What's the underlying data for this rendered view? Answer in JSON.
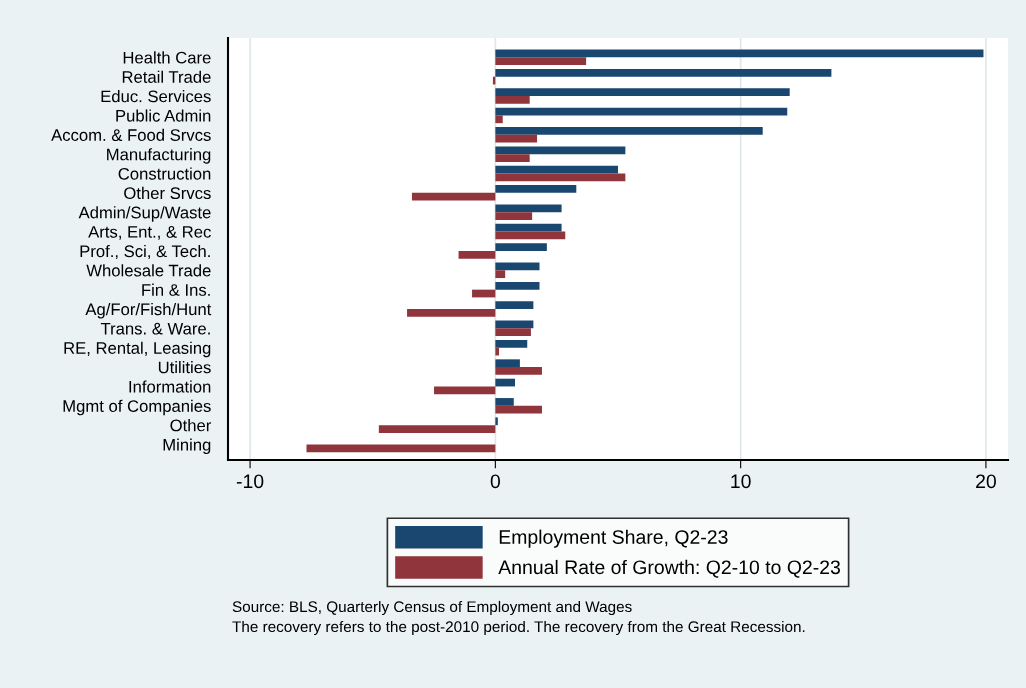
{
  "chart_data": {
    "type": "bar",
    "orientation": "horizontal",
    "categories": [
      "Health Care",
      "Retail Trade",
      "Educ. Services",
      "Public Admin",
      "Accom. & Food Srvcs",
      "Manufacturing",
      "Construction",
      "Other Srvcs",
      "Admin/Sup/Waste",
      "Arts, Ent., & Rec",
      "Prof., Sci, & Tech.",
      "Wholesale Trade",
      "Fin & Ins.",
      "Ag/For/Fish/Hunt",
      "Trans. & Ware.",
      "RE, Rental, Leasing",
      "Utilities",
      "Information",
      "Mgmt of Companies",
      "Other",
      "Mining"
    ],
    "series": [
      {
        "name": "Employment Share, Q2-23",
        "color": "#1a476f",
        "values": [
          19.9,
          13.7,
          12.0,
          11.9,
          10.9,
          5.3,
          5.0,
          3.3,
          2.7,
          2.7,
          2.1,
          1.8,
          1.8,
          1.55,
          1.55,
          1.3,
          1.0,
          0.8,
          0.75,
          0.1,
          0.0
        ]
      },
      {
        "name": "Annual Rate of Growth: Q2-10 to Q2-23",
        "color": "#90353b",
        "values": [
          3.7,
          -0.1,
          1.4,
          0.3,
          1.7,
          1.4,
          5.3,
          -3.4,
          1.5,
          2.85,
          -1.5,
          0.4,
          -0.95,
          -3.6,
          1.45,
          0.15,
          1.9,
          -2.5,
          1.9,
          -4.75,
          -7.7
        ]
      }
    ],
    "xlim": [
      -10.9,
      20.9
    ],
    "xticks": [
      -10,
      0,
      10,
      20
    ],
    "grid": "x",
    "legend": "bottom",
    "annotations": [
      "Source: BLS, Quarterly Census of Employment and Wages",
      "The recovery refers to the post-2010 period. The recovery from the Great Recession."
    ]
  }
}
